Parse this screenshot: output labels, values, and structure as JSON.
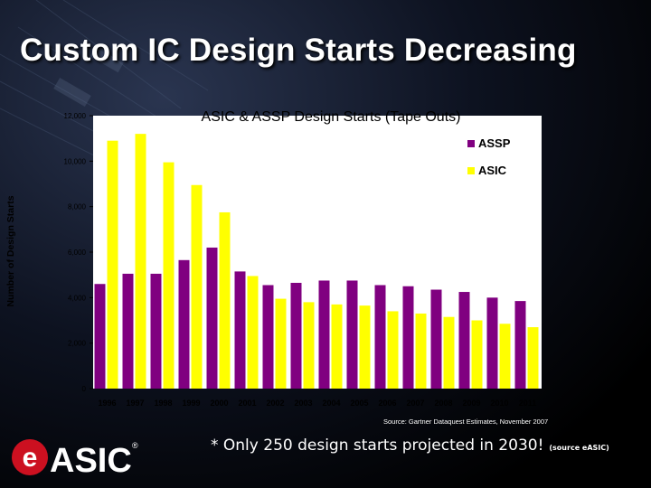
{
  "slide": {
    "title": "Custom IC Design Starts Decreasing",
    "footnote": "* Only 250 design starts projected in 2030!",
    "footnote_source": "(source eASIC)",
    "logo_text": "ASIC",
    "logo_letter": "e",
    "logo_mark": "®"
  },
  "chart_data": {
    "type": "bar",
    "title": "ASIC & ASSP Design Starts (Tape Outs)",
    "ylabel": "Number of Design Starts",
    "xlabel": "",
    "source": "Source: Gartner Dataquest Estimates, November 2007",
    "categories": [
      "1996",
      "1997",
      "1998",
      "1999",
      "2000",
      "2001",
      "2002",
      "2003",
      "2004",
      "2005",
      "2006",
      "2007",
      "2008",
      "2009",
      "2010",
      "2011"
    ],
    "series": [
      {
        "name": "ASSP",
        "color": "#800080",
        "values": [
          4600,
          5050,
          5050,
          5650,
          6200,
          5150,
          4550,
          4650,
          4750,
          4750,
          4550,
          4500,
          4350,
          4250,
          4000,
          3850
        ]
      },
      {
        "name": "ASIC",
        "color": "#ffff00",
        "values": [
          10900,
          11200,
          9950,
          8950,
          7750,
          4950,
          3950,
          3800,
          3700,
          3650,
          3400,
          3300,
          3150,
          3000,
          2850,
          2700
        ]
      }
    ],
    "yticks": [
      {
        "value": 0,
        "label": "0"
      },
      {
        "value": 2000,
        "label": "2,000"
      },
      {
        "value": 4000,
        "label": "4,000"
      },
      {
        "value": 6000,
        "label": "6,000"
      },
      {
        "value": 8000,
        "label": "8,000"
      },
      {
        "value": 10000,
        "label": "10,000"
      },
      {
        "value": 12000,
        "label": "12,000"
      }
    ],
    "ylim": [
      0,
      12000
    ],
    "legend": "top-right",
    "grid": false
  }
}
